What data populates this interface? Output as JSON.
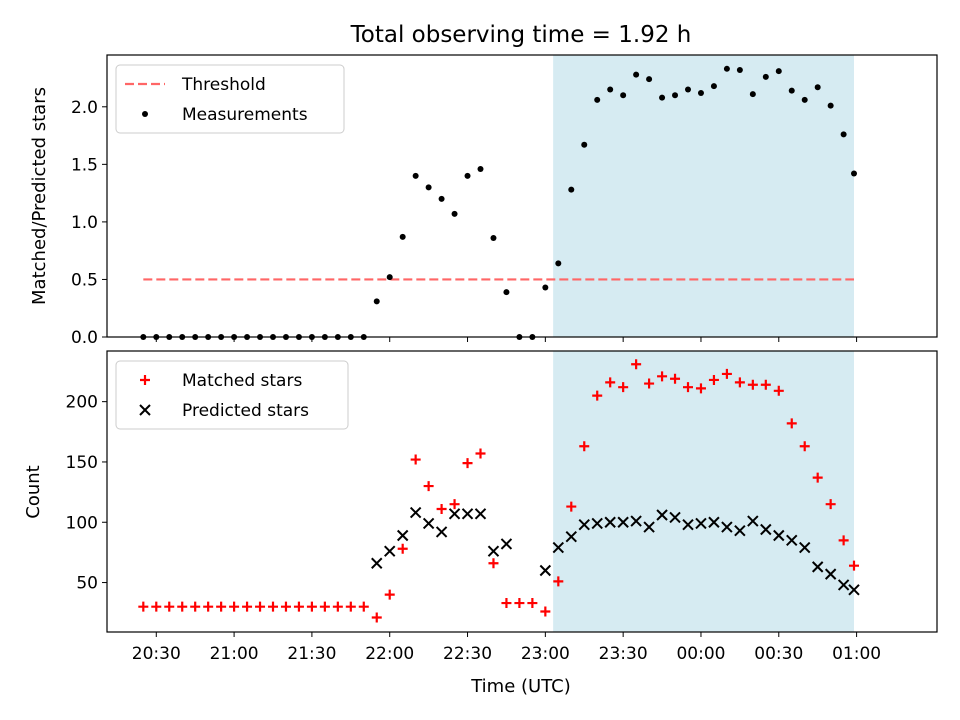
{
  "title": "Total observing time = 1.92 h",
  "x_tick_labels": [
    "20:30",
    "21:00",
    "21:30",
    "22:00",
    "22:30",
    "23:00",
    "23:30",
    "00:00",
    "00:30",
    "01:00"
  ],
  "xlabel": "Time (UTC)",
  "colors": {
    "highlight": "#add8e6",
    "threshold": "#ff6666",
    "measurements": "#000000",
    "matched": "#ff0000",
    "predicted": "#000000"
  },
  "chart_data": [
    {
      "type": "scatter",
      "ylabel": "Matched/Predicted stars",
      "xlim": [
        -19,
        301
      ],
      "ylim": [
        0,
        2.45
      ],
      "y_ticks": [
        "0.0",
        "0.5",
        "1.0",
        "1.5",
        "2.0"
      ],
      "grid": false,
      "legend_position": "upper-left",
      "highlight_span": [
        153,
        269
      ],
      "threshold": {
        "name": "Threshold",
        "y": 0.5,
        "x_range": [
          -5,
          269
        ]
      },
      "x_ticks_minutes": [
        0,
        30,
        60,
        90,
        120,
        150,
        180,
        210,
        240,
        270
      ],
      "series": [
        {
          "name": "Measurements",
          "marker": "dot",
          "x": [
            -5,
            0,
            5,
            10,
            15,
            20,
            25,
            30,
            35,
            40,
            45,
            50,
            55,
            60,
            65,
            70,
            75,
            80,
            85,
            90,
            95,
            100,
            105,
            110,
            115,
            120,
            125,
            130,
            135,
            140,
            145,
            150,
            155,
            160,
            165,
            170,
            175,
            180,
            185,
            190,
            195,
            200,
            205,
            210,
            215,
            220,
            225,
            230,
            235,
            240,
            245,
            250,
            255,
            260,
            265,
            269
          ],
          "y": [
            0.0,
            0.0,
            0.0,
            0.0,
            0.0,
            0.0,
            0.0,
            0.0,
            0.0,
            0.0,
            0.0,
            0.0,
            0.0,
            0.0,
            0.0,
            0.0,
            0.0,
            0.0,
            0.31,
            0.52,
            0.87,
            1.4,
            1.3,
            1.2,
            1.07,
            1.4,
            1.46,
            0.86,
            0.39,
            0.0,
            0.0,
            0.43,
            0.64,
            1.28,
            1.67,
            2.06,
            2.15,
            2.1,
            2.28,
            2.24,
            2.08,
            2.1,
            2.15,
            2.12,
            2.18,
            2.33,
            2.32,
            2.11,
            2.26,
            2.31,
            2.14,
            2.06,
            2.17,
            2.01,
            1.76,
            1.42
          ]
        }
      ]
    },
    {
      "type": "scatter",
      "ylabel": "Count",
      "xlabel": "Time (UTC)",
      "xlim": [
        -19,
        301
      ],
      "ylim": [
        9,
        242
      ],
      "y_ticks": [
        "50",
        "100",
        "150",
        "200"
      ],
      "grid": false,
      "legend_position": "upper-left",
      "highlight_span": [
        153,
        269
      ],
      "x_ticks_minutes": [
        0,
        30,
        60,
        90,
        120,
        150,
        180,
        210,
        240,
        270
      ],
      "series": [
        {
          "name": "Matched stars",
          "marker": "plus",
          "x": [
            -5,
            0,
            5,
            10,
            15,
            20,
            25,
            30,
            35,
            40,
            45,
            50,
            55,
            60,
            65,
            70,
            75,
            80,
            85,
            90,
            95,
            100,
            105,
            110,
            115,
            120,
            125,
            130,
            135,
            140,
            145,
            150,
            155,
            160,
            165,
            170,
            175,
            180,
            185,
            190,
            195,
            200,
            205,
            210,
            215,
            220,
            225,
            230,
            235,
            240,
            245,
            250,
            255,
            260,
            265,
            269
          ],
          "y": [
            30,
            30,
            30,
            30,
            30,
            30,
            30,
            30,
            30,
            30,
            30,
            30,
            30,
            30,
            30,
            30,
            30,
            30,
            21,
            40,
            78,
            152,
            130,
            111,
            115,
            149,
            157,
            66,
            33,
            33,
            33,
            26,
            51,
            113,
            163,
            205,
            216,
            212,
            231,
            215,
            221,
            219,
            212,
            211,
            218,
            223,
            216,
            214,
            214,
            209,
            182,
            163,
            137,
            115,
            85,
            64
          ]
        },
        {
          "name": "Predicted stars",
          "marker": "x",
          "x": [
            85,
            90,
            95,
            100,
            105,
            110,
            115,
            120,
            125,
            130,
            135,
            150,
            155,
            160,
            165,
            170,
            175,
            180,
            185,
            190,
            195,
            200,
            205,
            210,
            215,
            220,
            225,
            230,
            235,
            240,
            245,
            250,
            255,
            260,
            265,
            269
          ],
          "y": [
            66,
            76,
            89,
            108,
            99,
            92,
            107,
            107,
            107,
            76,
            82,
            60,
            79,
            88,
            98,
            99,
            100,
            100,
            101,
            96,
            106,
            104,
            98,
            99,
            100,
            96,
            93,
            101,
            94,
            89,
            85,
            79,
            63,
            57,
            48,
            44
          ]
        }
      ]
    }
  ]
}
